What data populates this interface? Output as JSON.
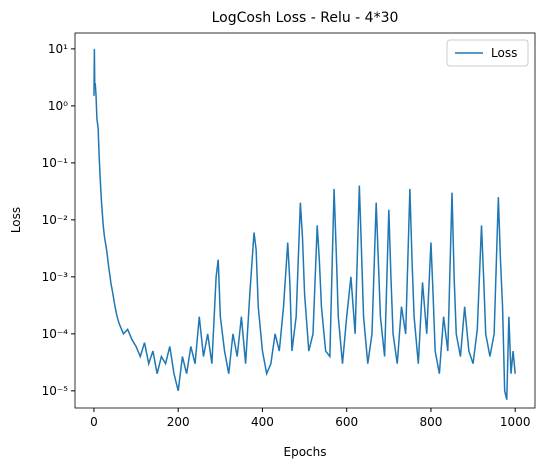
{
  "chart_data": {
    "type": "line",
    "title": "LogCosh Loss - Relu - 4*30",
    "xlabel": "Epochs",
    "ylabel": "Loss",
    "log_y": true,
    "legend": "upper right",
    "xlim": [
      -45,
      1047
    ],
    "ylim": [
      5e-06,
      19
    ],
    "xticks": [
      0,
      200,
      400,
      600,
      800,
      1000
    ],
    "yticks": [
      {
        "value": 10,
        "label": "10¹"
      },
      {
        "value": 1,
        "label": "10⁰"
      },
      {
        "value": 0.1,
        "label": "10⁻¹"
      },
      {
        "value": 0.01,
        "label": "10⁻²"
      },
      {
        "value": 0.001,
        "label": "10⁻³"
      },
      {
        "value": 0.0001,
        "label": "10⁻⁴"
      },
      {
        "value": 1e-05,
        "label": "10⁻⁵"
      }
    ],
    "series": [
      {
        "name": "Loss",
        "color": "#1f77b4",
        "x": [
          0,
          1,
          2,
          3,
          5,
          7,
          10,
          12,
          15,
          18,
          22,
          25,
          30,
          35,
          40,
          45,
          50,
          55,
          60,
          70,
          80,
          90,
          100,
          110,
          120,
          130,
          140,
          150,
          160,
          170,
          180,
          190,
          200,
          210,
          220,
          230,
          240,
          250,
          260,
          270,
          280,
          290,
          295,
          300,
          310,
          320,
          330,
          340,
          350,
          360,
          370,
          380,
          385,
          390,
          400,
          410,
          420,
          430,
          440,
          450,
          460,
          465,
          470,
          480,
          490,
          495,
          500,
          510,
          520,
          530,
          535,
          540,
          550,
          560,
          570,
          575,
          580,
          590,
          600,
          610,
          620,
          630,
          635,
          640,
          650,
          660,
          670,
          675,
          680,
          690,
          700,
          705,
          710,
          720,
          730,
          740,
          750,
          755,
          760,
          770,
          780,
          790,
          800,
          805,
          810,
          820,
          830,
          840,
          850,
          855,
          860,
          870,
          880,
          890,
          900,
          910,
          920,
          925,
          930,
          940,
          950,
          960,
          965,
          970,
          975,
          980,
          985,
          990,
          995,
          1000
        ],
        "values": [
          1.5,
          10,
          2,
          2.5,
          1.5,
          0.6,
          0.4,
          0.15,
          0.05,
          0.02,
          0.008,
          0.005,
          0.003,
          0.0015,
          0.0008,
          0.0005,
          0.0003,
          0.0002,
          0.00015,
          0.0001,
          0.00012,
          8e-05,
          6e-05,
          4e-05,
          7e-05,
          3e-05,
          5e-05,
          2e-05,
          4e-05,
          3e-05,
          6e-05,
          2e-05,
          1e-05,
          4e-05,
          2e-05,
          6e-05,
          3e-05,
          0.0002,
          4e-05,
          0.0001,
          3e-05,
          0.001,
          0.002,
          0.0002,
          5e-05,
          2e-05,
          0.0001,
          4e-05,
          0.0002,
          3e-05,
          0.0005,
          0.006,
          0.003,
          0.0003,
          5e-05,
          2e-05,
          3e-05,
          0.0001,
          5e-05,
          0.0003,
          0.004,
          0.0008,
          5e-05,
          0.0002,
          0.02,
          0.005,
          0.0005,
          5e-05,
          0.0001,
          0.008,
          0.002,
          0.0003,
          5e-05,
          4e-05,
          0.035,
          0.003,
          0.0002,
          3e-05,
          0.0002,
          0.001,
          0.0001,
          0.04,
          0.003,
          0.0002,
          3e-05,
          0.0001,
          0.02,
          0.002,
          0.0002,
          4e-05,
          0.015,
          0.001,
          0.0001,
          3e-05,
          0.0003,
          0.0001,
          0.035,
          0.002,
          0.0002,
          3e-05,
          0.0008,
          0.0001,
          0.004,
          0.0005,
          5e-05,
          2e-05,
          0.0002,
          5e-05,
          0.03,
          0.001,
          0.0001,
          4e-05,
          0.0003,
          5e-05,
          3e-05,
          0.00012,
          0.008,
          0.001,
          0.0001,
          4e-05,
          0.0001,
          0.025,
          0.002,
          0.0003,
          1e-05,
          7e-06,
          0.0002,
          2e-05,
          5e-05,
          2e-05
        ]
      }
    ]
  }
}
